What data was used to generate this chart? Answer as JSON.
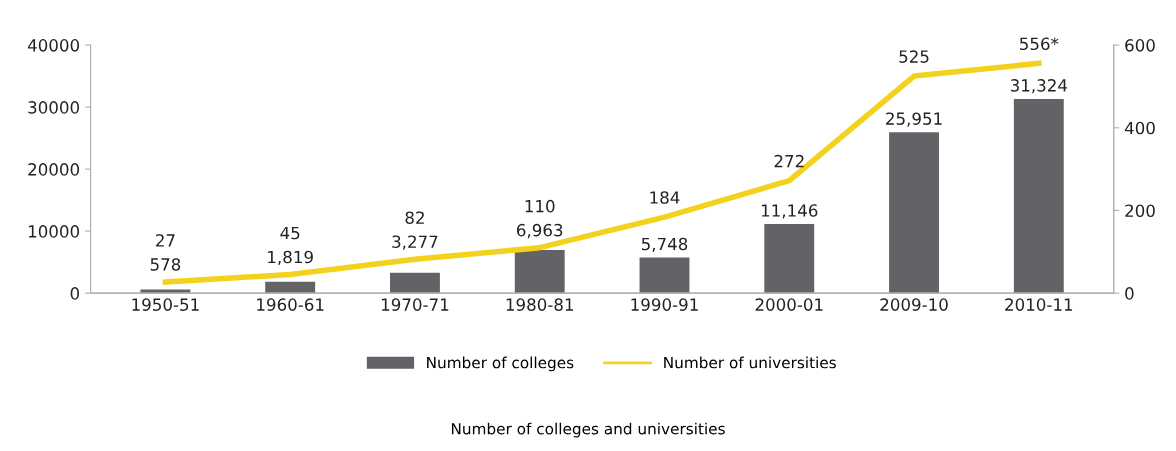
{
  "chart_data": {
    "type": "bar",
    "title": "Number of colleges and universities",
    "categories": [
      "1950-51",
      "1960-61",
      "1970-71",
      "1980-81",
      "1990-91",
      "2000-01",
      "2009-10",
      "2010-11"
    ],
    "series": [
      {
        "name": "Number of colleges",
        "color": "#636367",
        "values": [
          578,
          1819,
          3277,
          6963,
          5748,
          11146,
          25951,
          31324
        ],
        "value_labels": [
          "578",
          "1,819",
          "3,277",
          "6,963",
          "5,748",
          "11,146",
          "25,951",
          "31,324"
        ]
      },
      {
        "name": "Number of universities",
        "type": "line",
        "axis": "y2",
        "color": "#f2d21c",
        "values": [
          27,
          45,
          82,
          110,
          184,
          272,
          525,
          556
        ],
        "value_labels": [
          "27",
          "45",
          "82",
          "110",
          "184",
          "272",
          "525",
          "556*"
        ]
      }
    ],
    "ylim": [
      0,
      40000
    ],
    "yticks": [
      0,
      10000,
      20000,
      30000,
      40000
    ],
    "y2lim": [
      0,
      600
    ],
    "y2ticks": [
      0,
      200,
      400,
      600
    ],
    "grid": false,
    "legend": "bottom",
    "marker": "none",
    "line_style": "solid"
  }
}
